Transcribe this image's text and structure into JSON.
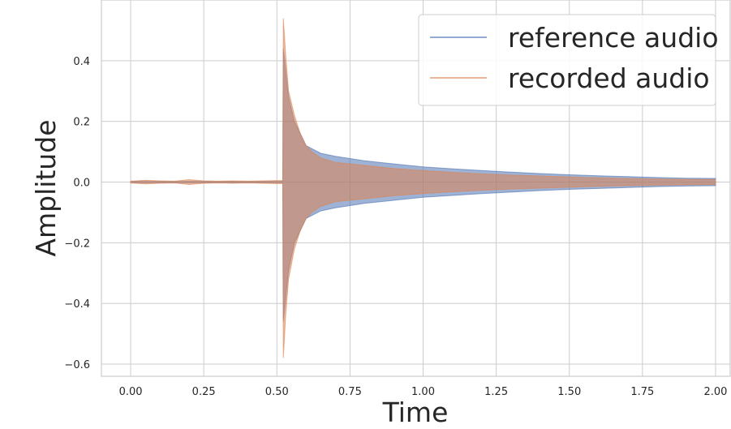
{
  "chart_data": {
    "type": "line",
    "xlabel": "Time",
    "ylabel": "Amplitude",
    "xlim": [
      -0.1,
      2.05
    ],
    "ylim": [
      -0.64,
      0.6
    ],
    "xticks": [
      0.0,
      0.25,
      0.5,
      0.75,
      1.0,
      1.25,
      1.5,
      1.75,
      2.0
    ],
    "xtick_labels": [
      "0.00",
      "0.25",
      "0.50",
      "0.75",
      "1.00",
      "1.25",
      "1.50",
      "1.75",
      "2.00"
    ],
    "yticks": [
      -0.6,
      -0.4,
      -0.2,
      0.0,
      0.2,
      0.4
    ],
    "ytick_labels": [
      "−0.6",
      "−0.4",
      "−0.2",
      "0.0",
      "0.2",
      "0.4"
    ],
    "grid": true,
    "legend_position": "top-right",
    "series": [
      {
        "name": "reference audio",
        "color": "#4c72b0",
        "envelope": {
          "x": [
            0.0,
            0.1,
            0.2,
            0.3,
            0.4,
            0.52,
            0.522,
            0.54,
            0.56,
            0.58,
            0.6,
            0.65,
            0.7,
            0.8,
            0.9,
            1.0,
            1.1,
            1.2,
            1.3,
            1.4,
            1.5,
            1.6,
            1.7,
            1.8,
            1.9,
            2.0
          ],
          "upper": [
            0.002,
            0.002,
            0.002,
            0.002,
            0.002,
            0.002,
            0.44,
            0.28,
            0.2,
            0.16,
            0.12,
            0.095,
            0.085,
            0.07,
            0.06,
            0.05,
            0.044,
            0.038,
            0.033,
            0.028,
            0.024,
            0.021,
            0.018,
            0.015,
            0.013,
            0.012
          ],
          "lower": [
            -0.002,
            -0.002,
            -0.002,
            -0.002,
            -0.002,
            -0.002,
            -0.46,
            -0.29,
            -0.2,
            -0.16,
            -0.12,
            -0.095,
            -0.085,
            -0.07,
            -0.06,
            -0.05,
            -0.044,
            -0.038,
            -0.033,
            -0.028,
            -0.024,
            -0.021,
            -0.018,
            -0.015,
            -0.013,
            -0.012
          ]
        }
      },
      {
        "name": "recorded audio",
        "color": "#dd8452",
        "envelope": {
          "x": [
            0.0,
            0.05,
            0.1,
            0.15,
            0.2,
            0.25,
            0.3,
            0.35,
            0.4,
            0.45,
            0.5,
            0.52,
            0.522,
            0.53,
            0.54,
            0.56,
            0.58,
            0.6,
            0.62,
            0.65,
            0.7,
            0.8,
            0.9,
            1.0,
            1.1,
            1.2,
            1.3,
            1.4,
            1.5,
            1.6,
            1.7,
            1.8,
            1.9,
            2.0
          ],
          "upper": [
            0.003,
            0.006,
            0.004,
            0.003,
            0.008,
            0.004,
            0.003,
            0.004,
            0.003,
            0.004,
            0.005,
            0.005,
            0.54,
            0.42,
            0.3,
            0.22,
            0.16,
            0.12,
            0.1,
            0.08,
            0.065,
            0.055,
            0.045,
            0.038,
            0.032,
            0.027,
            0.023,
            0.02,
            0.017,
            0.014,
            0.012,
            0.01,
            0.009,
            0.008
          ],
          "lower": [
            -0.003,
            -0.006,
            -0.004,
            -0.003,
            -0.008,
            -0.004,
            -0.003,
            -0.004,
            -0.003,
            -0.004,
            -0.005,
            -0.005,
            -0.58,
            -0.44,
            -0.32,
            -0.22,
            -0.16,
            -0.12,
            -0.1,
            -0.08,
            -0.065,
            -0.055,
            -0.045,
            -0.038,
            -0.032,
            -0.027,
            -0.023,
            -0.02,
            -0.017,
            -0.014,
            -0.012,
            -0.01,
            -0.009,
            -0.008
          ]
        }
      }
    ]
  }
}
